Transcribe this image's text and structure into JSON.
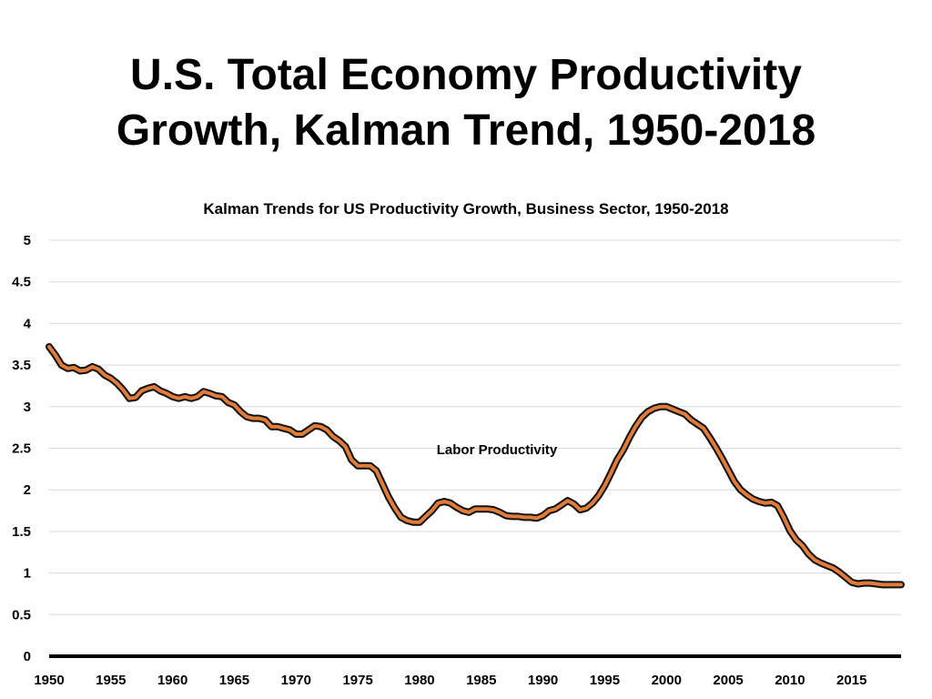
{
  "slide": {
    "title_line1": "U.S. Total Economy Productivity",
    "title_line2": "Growth, Kalman Trend, 1950-2018"
  },
  "chart_data": {
    "type": "line",
    "title": "Kalman Trends for US Productivity Growth, Business Sector, 1950-2018",
    "xlabel": "",
    "ylabel": "",
    "xlim": [
      1950,
      2019
    ],
    "ylim": [
      0,
      5
    ],
    "x_ticks": [
      1950,
      1955,
      1960,
      1965,
      1970,
      1975,
      1980,
      1985,
      1990,
      1995,
      2000,
      2005,
      2010,
      2015
    ],
    "y_ticks": [
      0,
      0.5,
      1,
      1.5,
      2,
      2.5,
      3,
      3.5,
      4,
      4.5,
      5
    ],
    "y_tick_labels": [
      "0",
      "0.5",
      "1",
      "1.5",
      "2",
      "2.5",
      "3",
      "3.5",
      "4",
      "4.5",
      "5"
    ],
    "grid": true,
    "legend": "none",
    "annotation": "Labor Productivity",
    "series": [
      {
        "color": "#e07b39",
        "outline_color": "#111111",
        "points": [
          [
            1950.0,
            3.72
          ],
          [
            1950.5,
            3.62
          ],
          [
            1951.0,
            3.5
          ],
          [
            1951.5,
            3.46
          ],
          [
            1952.0,
            3.47
          ],
          [
            1952.5,
            3.43
          ],
          [
            1953.0,
            3.44
          ],
          [
            1953.5,
            3.48
          ],
          [
            1954.0,
            3.45
          ],
          [
            1954.5,
            3.38
          ],
          [
            1955.0,
            3.34
          ],
          [
            1955.5,
            3.28
          ],
          [
            1956.0,
            3.2
          ],
          [
            1956.5,
            3.1
          ],
          [
            1957.0,
            3.11
          ],
          [
            1957.5,
            3.19
          ],
          [
            1958.0,
            3.22
          ],
          [
            1958.5,
            3.24
          ],
          [
            1959.0,
            3.19
          ],
          [
            1959.5,
            3.16
          ],
          [
            1960.0,
            3.12
          ],
          [
            1960.5,
            3.1
          ],
          [
            1961.0,
            3.12
          ],
          [
            1961.5,
            3.1
          ],
          [
            1962.0,
            3.12
          ],
          [
            1962.5,
            3.18
          ],
          [
            1963.0,
            3.16
          ],
          [
            1963.5,
            3.13
          ],
          [
            1964.0,
            3.12
          ],
          [
            1964.5,
            3.05
          ],
          [
            1965.0,
            3.02
          ],
          [
            1965.5,
            2.94
          ],
          [
            1966.0,
            2.88
          ],
          [
            1966.5,
            2.86
          ],
          [
            1967.0,
            2.86
          ],
          [
            1967.5,
            2.84
          ],
          [
            1968.0,
            2.76
          ],
          [
            1968.5,
            2.76
          ],
          [
            1969.0,
            2.74
          ],
          [
            1969.5,
            2.72
          ],
          [
            1970.0,
            2.67
          ],
          [
            1970.5,
            2.67
          ],
          [
            1971.0,
            2.72
          ],
          [
            1971.5,
            2.77
          ],
          [
            1972.0,
            2.76
          ],
          [
            1972.5,
            2.72
          ],
          [
            1973.0,
            2.64
          ],
          [
            1973.5,
            2.59
          ],
          [
            1974.0,
            2.52
          ],
          [
            1974.5,
            2.36
          ],
          [
            1975.0,
            2.29
          ],
          [
            1975.5,
            2.29
          ],
          [
            1976.0,
            2.29
          ],
          [
            1976.5,
            2.23
          ],
          [
            1977.0,
            2.07
          ],
          [
            1977.5,
            1.91
          ],
          [
            1978.0,
            1.78
          ],
          [
            1978.5,
            1.67
          ],
          [
            1979.0,
            1.63
          ],
          [
            1979.5,
            1.61
          ],
          [
            1980.0,
            1.61
          ],
          [
            1980.5,
            1.68
          ],
          [
            1981.0,
            1.75
          ],
          [
            1981.5,
            1.84
          ],
          [
            1982.0,
            1.86
          ],
          [
            1982.5,
            1.84
          ],
          [
            1983.0,
            1.79
          ],
          [
            1983.5,
            1.75
          ],
          [
            1984.0,
            1.73
          ],
          [
            1984.5,
            1.77
          ],
          [
            1985.0,
            1.77
          ],
          [
            1985.5,
            1.77
          ],
          [
            1986.0,
            1.76
          ],
          [
            1986.5,
            1.73
          ],
          [
            1987.0,
            1.69
          ],
          [
            1987.5,
            1.68
          ],
          [
            1988.0,
            1.68
          ],
          [
            1988.5,
            1.67
          ],
          [
            1989.0,
            1.67
          ],
          [
            1989.5,
            1.66
          ],
          [
            1990.0,
            1.69
          ],
          [
            1990.5,
            1.75
          ],
          [
            1991.0,
            1.77
          ],
          [
            1991.5,
            1.82
          ],
          [
            1992.0,
            1.87
          ],
          [
            1992.5,
            1.83
          ],
          [
            1993.0,
            1.76
          ],
          [
            1993.5,
            1.78
          ],
          [
            1994.0,
            1.84
          ],
          [
            1994.5,
            1.93
          ],
          [
            1995.0,
            2.05
          ],
          [
            1995.5,
            2.2
          ],
          [
            1996.0,
            2.36
          ],
          [
            1996.5,
            2.48
          ],
          [
            1997.0,
            2.63
          ],
          [
            1997.5,
            2.76
          ],
          [
            1998.0,
            2.87
          ],
          [
            1998.5,
            2.94
          ],
          [
            1999.0,
            2.98
          ],
          [
            1999.5,
            3.0
          ],
          [
            2000.0,
            3.0
          ],
          [
            2000.5,
            2.97
          ],
          [
            2001.0,
            2.94
          ],
          [
            2001.5,
            2.91
          ],
          [
            2002.0,
            2.84
          ],
          [
            2002.5,
            2.79
          ],
          [
            2003.0,
            2.74
          ],
          [
            2003.5,
            2.63
          ],
          [
            2004.0,
            2.51
          ],
          [
            2004.5,
            2.38
          ],
          [
            2005.0,
            2.24
          ],
          [
            2005.5,
            2.1
          ],
          [
            2006.0,
            2.0
          ],
          [
            2006.5,
            1.94
          ],
          [
            2007.0,
            1.89
          ],
          [
            2007.5,
            1.86
          ],
          [
            2008.0,
            1.84
          ],
          [
            2008.5,
            1.85
          ],
          [
            2009.0,
            1.81
          ],
          [
            2009.5,
            1.67
          ],
          [
            2010.0,
            1.51
          ],
          [
            2010.5,
            1.4
          ],
          [
            2011.0,
            1.33
          ],
          [
            2011.5,
            1.23
          ],
          [
            2012.0,
            1.16
          ],
          [
            2012.5,
            1.12
          ],
          [
            2013.0,
            1.09
          ],
          [
            2013.5,
            1.06
          ],
          [
            2014.0,
            1.01
          ],
          [
            2014.5,
            0.95
          ],
          [
            2015.0,
            0.89
          ],
          [
            2015.5,
            0.87
          ],
          [
            2016.0,
            0.88
          ],
          [
            2016.5,
            0.88
          ],
          [
            2017.0,
            0.87
          ],
          [
            2017.5,
            0.86
          ],
          [
            2018.0,
            0.86
          ],
          [
            2018.5,
            0.86
          ],
          [
            2019.0,
            0.86
          ]
        ]
      }
    ]
  }
}
